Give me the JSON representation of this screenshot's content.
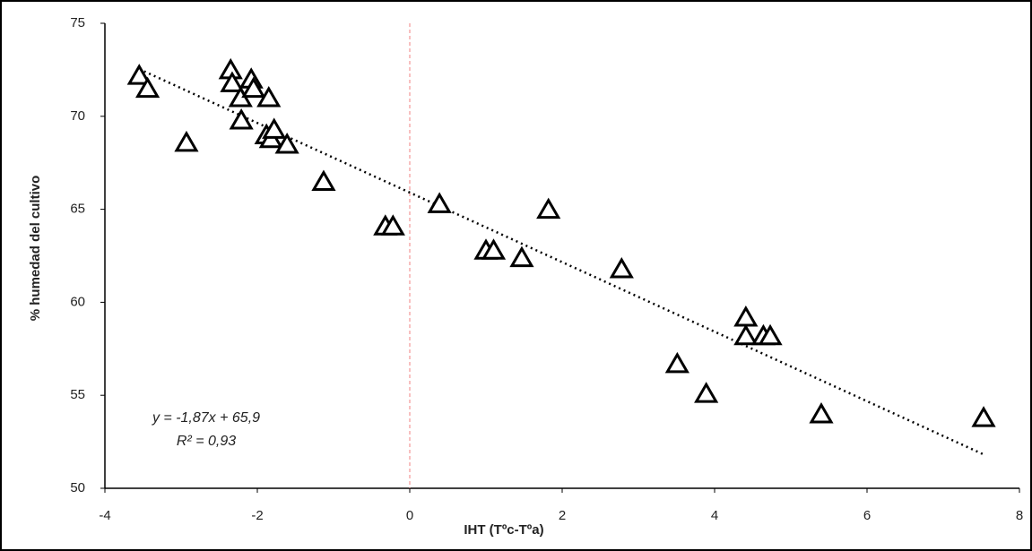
{
  "chart_data": {
    "type": "scatter",
    "x_label": "IHT (Tºc-Tºa)",
    "y_label": "% humedad del cultivo",
    "x": [
      -3.55,
      -3.44,
      -2.93,
      -2.35,
      -2.33,
      -2.22,
      -2.21,
      -2.08,
      -2.05,
      -1.85,
      -1.88,
      -1.82,
      -1.78,
      -1.61,
      -1.13,
      -0.32,
      -0.22,
      0.39,
      1.0,
      1.1,
      1.47,
      1.82,
      2.78,
      4.41,
      4.41,
      4.64,
      4.73,
      3.51,
      3.89,
      5.4,
      7.53
    ],
    "values": [
      72.2,
      71.5,
      68.6,
      72.5,
      71.8,
      71.0,
      69.8,
      72.0,
      71.5,
      71.0,
      69.0,
      68.8,
      69.3,
      68.5,
      66.5,
      64.1,
      64.1,
      65.3,
      62.8,
      62.8,
      62.4,
      65.0,
      61.8,
      59.2,
      58.2,
      58.2,
      58.2,
      56.7,
      55.1,
      54.0,
      53.8
    ],
    "color": "#000000",
    "xlim": [
      -4,
      8
    ],
    "xticks": [
      -4,
      -2,
      0,
      2,
      4,
      6,
      8
    ],
    "ylim": [
      50,
      75
    ],
    "yticks": [
      50,
      55,
      60,
      65,
      70,
      75
    ],
    "trendline": {
      "slope": -1.87,
      "intercept": 65.9,
      "equation": "y = -1,87x + 65,9",
      "r2": "R² = 0,93"
    },
    "vline": 0,
    "vline_color": "#f08080"
  }
}
